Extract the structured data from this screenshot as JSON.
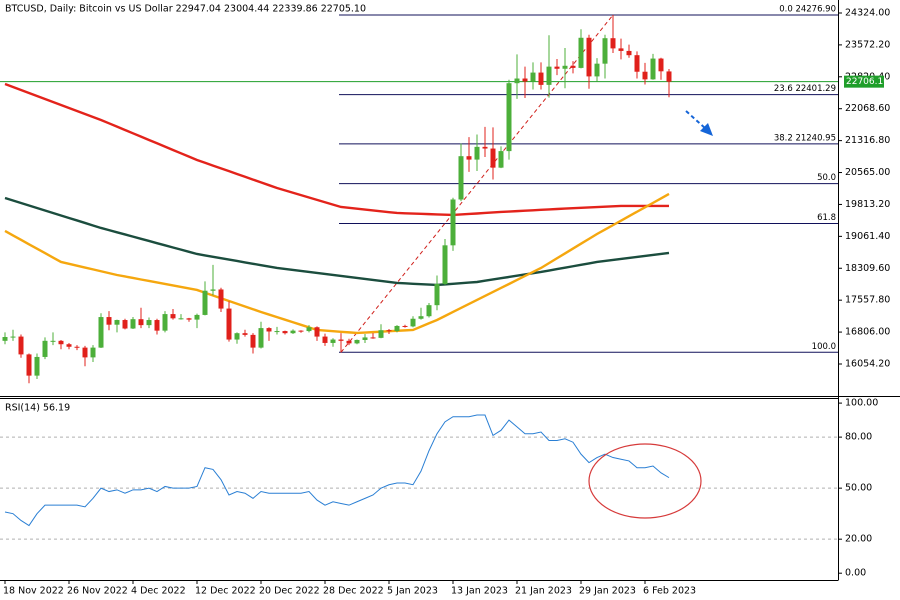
{
  "chart_data": [
    {
      "type": "candlestick",
      "title": "BTCUSD, Daily:  Bitcoin vs US Dollar  22947.04 23004.44 22339.86 22705.10",
      "categories": [
        "18 Nov 2022",
        null,
        null,
        null,
        null,
        null,
        null,
        null,
        "26 Nov 2022",
        null,
        null,
        null,
        null,
        null,
        null,
        null,
        "4 Dec 2022",
        null,
        null,
        null,
        null,
        null,
        null,
        null,
        "12 Dec 2022",
        null,
        null,
        null,
        null,
        null,
        null,
        null,
        "20 Dec 2022",
        null,
        null,
        null,
        null,
        null,
        null,
        null,
        "28 Dec 2022",
        null,
        null,
        null,
        null,
        null,
        null,
        null,
        "5 Jan 2023",
        null,
        null,
        null,
        null,
        null,
        null,
        null,
        "13 Jan 2023",
        null,
        null,
        null,
        null,
        null,
        null,
        null,
        "21 Jan 2023",
        null,
        null,
        null,
        null,
        null,
        null,
        null,
        "29 Jan 2023",
        null,
        null,
        null,
        null,
        null,
        null,
        null,
        "6 Feb 2023",
        null,
        null,
        null
      ],
      "open": [
        16600,
        16690,
        16700,
        16280,
        15780,
        16220,
        16600,
        16600,
        16520,
        16460,
        16440,
        16210,
        16440,
        17160,
        16980,
        17090,
        16890,
        17110,
        16970,
        17090,
        16840,
        17230,
        17130,
        17130,
        17100,
        17210,
        17780,
        17810,
        17360,
        16630,
        16780,
        16740,
        16440,
        16900,
        16820,
        16830,
        16780,
        16840,
        16830,
        16920,
        16700,
        16550,
        16630,
        16600,
        16540,
        16620,
        16680,
        16670,
        16850,
        16830,
        16950,
        16940,
        17120,
        17180,
        17440,
        17940,
        18850,
        19930,
        20950,
        20870,
        21170,
        21130,
        20680,
        21070,
        22670,
        22780,
        22710,
        22920,
        22630,
        23060,
        23010,
        23080,
        23030,
        23740,
        22830,
        23130,
        23730,
        23490,
        23430,
        23330,
        22940,
        22760,
        23250,
        22947.04
      ],
      "high": [
        16800,
        16860,
        16750,
        16300,
        16300,
        16680,
        16800,
        16620,
        16550,
        16500,
        16480,
        16500,
        17250,
        17300,
        17100,
        17120,
        17160,
        17380,
        17150,
        17120,
        17300,
        17350,
        17230,
        17140,
        17240,
        18000,
        18390,
        17850,
        17530,
        16800,
        16860,
        16780,
        17050,
        16920,
        16930,
        16840,
        16870,
        16850,
        16970,
        16940,
        16770,
        16660,
        16780,
        16650,
        16630,
        16760,
        16780,
        16990,
        16880,
        16970,
        16980,
        17180,
        17380,
        17490,
        18140,
        19000,
        19970,
        21250,
        21400,
        21460,
        21640,
        21630,
        21180,
        22750,
        23350,
        23060,
        23160,
        23160,
        23800,
        23240,
        23500,
        23190,
        23940,
        23810,
        23260,
        23810,
        24276.9,
        23720,
        23580,
        23420,
        23150,
        23360,
        23270,
        23004.44
      ],
      "low": [
        16520,
        16600,
        16200,
        15600,
        15700,
        16170,
        16500,
        16400,
        16400,
        16380,
        16000,
        16100,
        16430,
        16850,
        16800,
        16870,
        16880,
        16900,
        16900,
        16750,
        16800,
        17100,
        17100,
        17050,
        16900,
        17200,
        17670,
        17280,
        16580,
        16530,
        16700,
        16300,
        16420,
        16600,
        16750,
        16750,
        16760,
        16790,
        16800,
        16600,
        16480,
        16460,
        16329.4,
        16500,
        16520,
        16550,
        16650,
        16660,
        16760,
        16800,
        16910,
        16920,
        17100,
        17150,
        17320,
        17920,
        18720,
        19890,
        20580,
        20600,
        20930,
        20400,
        20670,
        20870,
        22300,
        22320,
        22520,
        22520,
        22330,
        22860,
        22550,
        22900,
        23020,
        22540,
        22710,
        22780,
        23380,
        23230,
        23270,
        22780,
        22640,
        22750,
        22750,
        22339.86
      ],
      "close": [
        16690,
        16700,
        16280,
        15780,
        16220,
        16600,
        16600,
        16520,
        16460,
        16440,
        16210,
        16440,
        17160,
        16980,
        17090,
        16890,
        17110,
        16970,
        17090,
        16840,
        17230,
        17130,
        17130,
        17100,
        17210,
        17780,
        17810,
        17360,
        16630,
        16780,
        16740,
        16440,
        16900,
        16820,
        16830,
        16780,
        16840,
        16830,
        16920,
        16700,
        16550,
        16630,
        16600,
        16540,
        16620,
        16680,
        16670,
        16850,
        16830,
        16950,
        16940,
        17120,
        17180,
        17440,
        17940,
        18850,
        19930,
        20950,
        20870,
        21170,
        21130,
        20680,
        21070,
        22670,
        22780,
        22710,
        22920,
        22630,
        23060,
        23010,
        23080,
        23030,
        23740,
        22830,
        23130,
        23730,
        23490,
        23430,
        23330,
        22940,
        22760,
        23250,
        22950,
        22705.1
      ],
      "up_color": "#4caf3a",
      "down_color": "#e0201b",
      "series": [
        {
          "color": "#e3231b",
          "values": [
            22651,
            22580,
            22510,
            22439,
            22368,
            22298,
            22227,
            22156,
            22086,
            22015,
            21944,
            21874,
            21803,
            21725,
            21646,
            21568,
            21489,
            21411,
            21332,
            21254,
            21175,
            21097,
            21018,
            20940,
            20861,
            20795,
            20729,
            20663,
            20597,
            20531,
            20465,
            20399,
            20333,
            20267,
            20201,
            20145,
            20089,
            20033,
            19977,
            19921,
            19865,
            19809,
            19753,
            19733,
            19713,
            19693,
            19672,
            19652,
            19632,
            19612,
            19605,
            19599,
            19592,
            19585,
            19578,
            19572,
            19565,
            19577,
            19589,
            19600,
            19612,
            19624,
            19636,
            19646,
            19656,
            19666,
            19676,
            19686,
            19696,
            19706,
            19715,
            19724,
            19733,
            19742,
            19751,
            19760,
            19768,
            19777,
            19777,
            19777,
            19777,
            19777,
            19777,
            19777
          ]
        },
        {
          "color": "#1b4d3e",
          "values": [
            19965,
            19906,
            19847,
            19789,
            19730,
            19671,
            19612,
            19553,
            19494,
            19436,
            19377,
            19318,
            19259,
            19208,
            19157,
            19106,
            19055,
            19004,
            18953,
            18901,
            18850,
            18799,
            18748,
            18697,
            18646,
            18613,
            18580,
            18547,
            18514,
            18481,
            18448,
            18415,
            18382,
            18349,
            18316,
            18293,
            18269,
            18246,
            18222,
            18199,
            18175,
            18152,
            18128,
            18104,
            18081,
            18057,
            18034,
            18010,
            17987,
            17963,
            17954,
            17944,
            17935,
            17925,
            17916,
            17930,
            17944,
            17958,
            17972,
            17986,
            18016,
            18045,
            18075,
            18104,
            18134,
            18163,
            18193,
            18222,
            18256,
            18290,
            18323,
            18357,
            18391,
            18424,
            18458,
            18482,
            18505,
            18529,
            18552,
            18576,
            18599,
            18623,
            18646,
            18670
          ]
        },
        {
          "color": "#f5a70f",
          "values": [
            19188,
            19084,
            18979,
            18875,
            18771,
            18667,
            18562,
            18458,
            18414,
            18370,
            18326,
            18283,
            18239,
            18195,
            18151,
            18116,
            18081,
            18045,
            18010,
            17975,
            17939,
            17904,
            17869,
            17833,
            17798,
            17733,
            17668,
            17604,
            17539,
            17474,
            17409,
            17345,
            17280,
            17219,
            17159,
            17098,
            17038,
            16977,
            16917,
            16856,
            16842,
            16828,
            16813,
            16799,
            16785,
            16795,
            16805,
            16815,
            16826,
            16836,
            16846,
            16856,
            16934,
            17013,
            17091,
            17185,
            17280,
            17374,
            17469,
            17563,
            17657,
            17751,
            17845,
            17939,
            18034,
            18128,
            18222,
            18316,
            18430,
            18545,
            18659,
            18774,
            18888,
            19002,
            19117,
            19222,
            19326,
            19431,
            19536,
            19641,
            19746,
            19850,
            19955,
            20060
          ]
        }
      ],
      "fib": {
        "color": "#10105a",
        "trend_color": "#d0201b",
        "levels": [
          {
            "value": 24276.9,
            "label": "0.0 24276.90"
          },
          {
            "value": 22401.29,
            "label": "23.6 22401.29"
          },
          {
            "value": 21240.95,
            "label": "38.2 21240.95"
          },
          {
            "value": 20303.15,
            "label": "50.0"
          },
          {
            "value": 19365.28,
            "label": "61.8"
          },
          {
            "value": 16329.4,
            "label": "100.0"
          }
        ]
      },
      "last_price": {
        "value": 22706.16,
        "label": "22706.16"
      },
      "last_price_color": "#1f9e2a",
      "ylim": [
        15300,
        24630
      ],
      "yticks": [
        {
          "value": 24324,
          "label": "24324.00"
        },
        {
          "value": 23572.2,
          "label": "23572.20"
        },
        {
          "value": 22820.4,
          "label": "22820.40"
        },
        {
          "value": 22068.6,
          "label": "22068.60"
        },
        {
          "value": 21316.8,
          "label": "21316.80"
        },
        {
          "value": 20565,
          "label": "20565.00"
        },
        {
          "value": 19813.2,
          "label": "19813.20"
        },
        {
          "value": 19061.4,
          "label": "19061.40"
        },
        {
          "value": 18309.6,
          "label": "18309.60"
        },
        {
          "value": 17557.8,
          "label": "17557.80"
        },
        {
          "value": 16806,
          "label": "16806.00"
        },
        {
          "value": 16054.2,
          "label": "16054.20"
        }
      ]
    },
    {
      "type": "line",
      "title": "RSI(14) 56.19",
      "color": "#2a7fd4",
      "values": [
        36,
        35,
        31,
        28,
        35,
        40,
        40,
        40,
        40,
        40,
        39,
        44,
        50,
        48,
        49,
        47,
        49,
        49,
        50,
        48,
        51,
        50,
        50,
        50,
        51,
        62,
        61,
        55,
        46,
        48,
        47,
        44,
        48,
        47,
        47,
        47,
        47,
        47,
        48,
        43,
        40,
        42,
        41,
        40,
        42,
        44,
        46,
        50,
        52,
        53,
        53,
        52,
        60,
        72,
        82,
        89,
        92,
        92,
        92,
        93,
        93,
        81,
        84,
        90,
        86,
        82,
        82,
        83,
        78,
        78,
        79,
        77,
        70,
        65,
        68,
        70,
        68,
        67,
        66,
        62,
        62,
        63,
        59,
        56.19
      ],
      "levels": [
        80,
        50,
        20
      ],
      "ylim": [
        -4,
        103
      ],
      "yticks": [
        {
          "value": 100,
          "label": "100.00"
        },
        {
          "value": 80,
          "label": "80.00"
        },
        {
          "value": 50,
          "label": "50.00"
        },
        {
          "value": 20,
          "label": "20.00"
        },
        {
          "value": 0,
          "label": "0.00"
        }
      ]
    }
  ]
}
